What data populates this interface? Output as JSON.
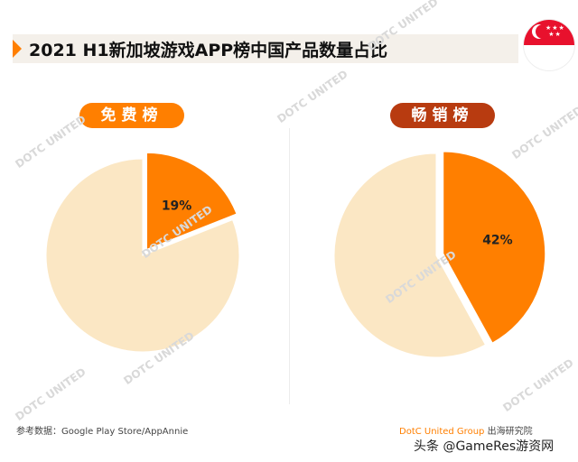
{
  "header": {
    "title": "2021 H1新加坡游戏APP榜中国产品数量占比",
    "flag_icon": "singapore-flag-icon"
  },
  "colors": {
    "accent": "#ff7f00",
    "accent_dark": "#b83b10",
    "pie_rest": "#fbe7c4",
    "title_bar_bg": "#f4f0ea"
  },
  "chart_data": [
    {
      "type": "pie",
      "title": "免费榜",
      "slices": [
        {
          "value": 19,
          "label": "19%",
          "color": "#ff7f00",
          "exploded": true
        },
        {
          "value": 81,
          "label": "",
          "color": "#fbe7c4",
          "exploded": false
        }
      ]
    },
    {
      "type": "pie",
      "title": "畅销榜",
      "slices": [
        {
          "value": 42,
          "label": "42%",
          "color": "#ff7f00",
          "exploded": true
        },
        {
          "value": 58,
          "label": "",
          "color": "#fbe7c4",
          "exploded": false
        }
      ]
    }
  ],
  "footer": {
    "source": "参考数据：Google Play Store/AppAnnie",
    "credit_brand": "DotC United Group",
    "credit_suffix": "出海研究院",
    "tag": "头条 @GameRes游资网"
  },
  "watermark": {
    "text": "DOTC UNITED"
  }
}
